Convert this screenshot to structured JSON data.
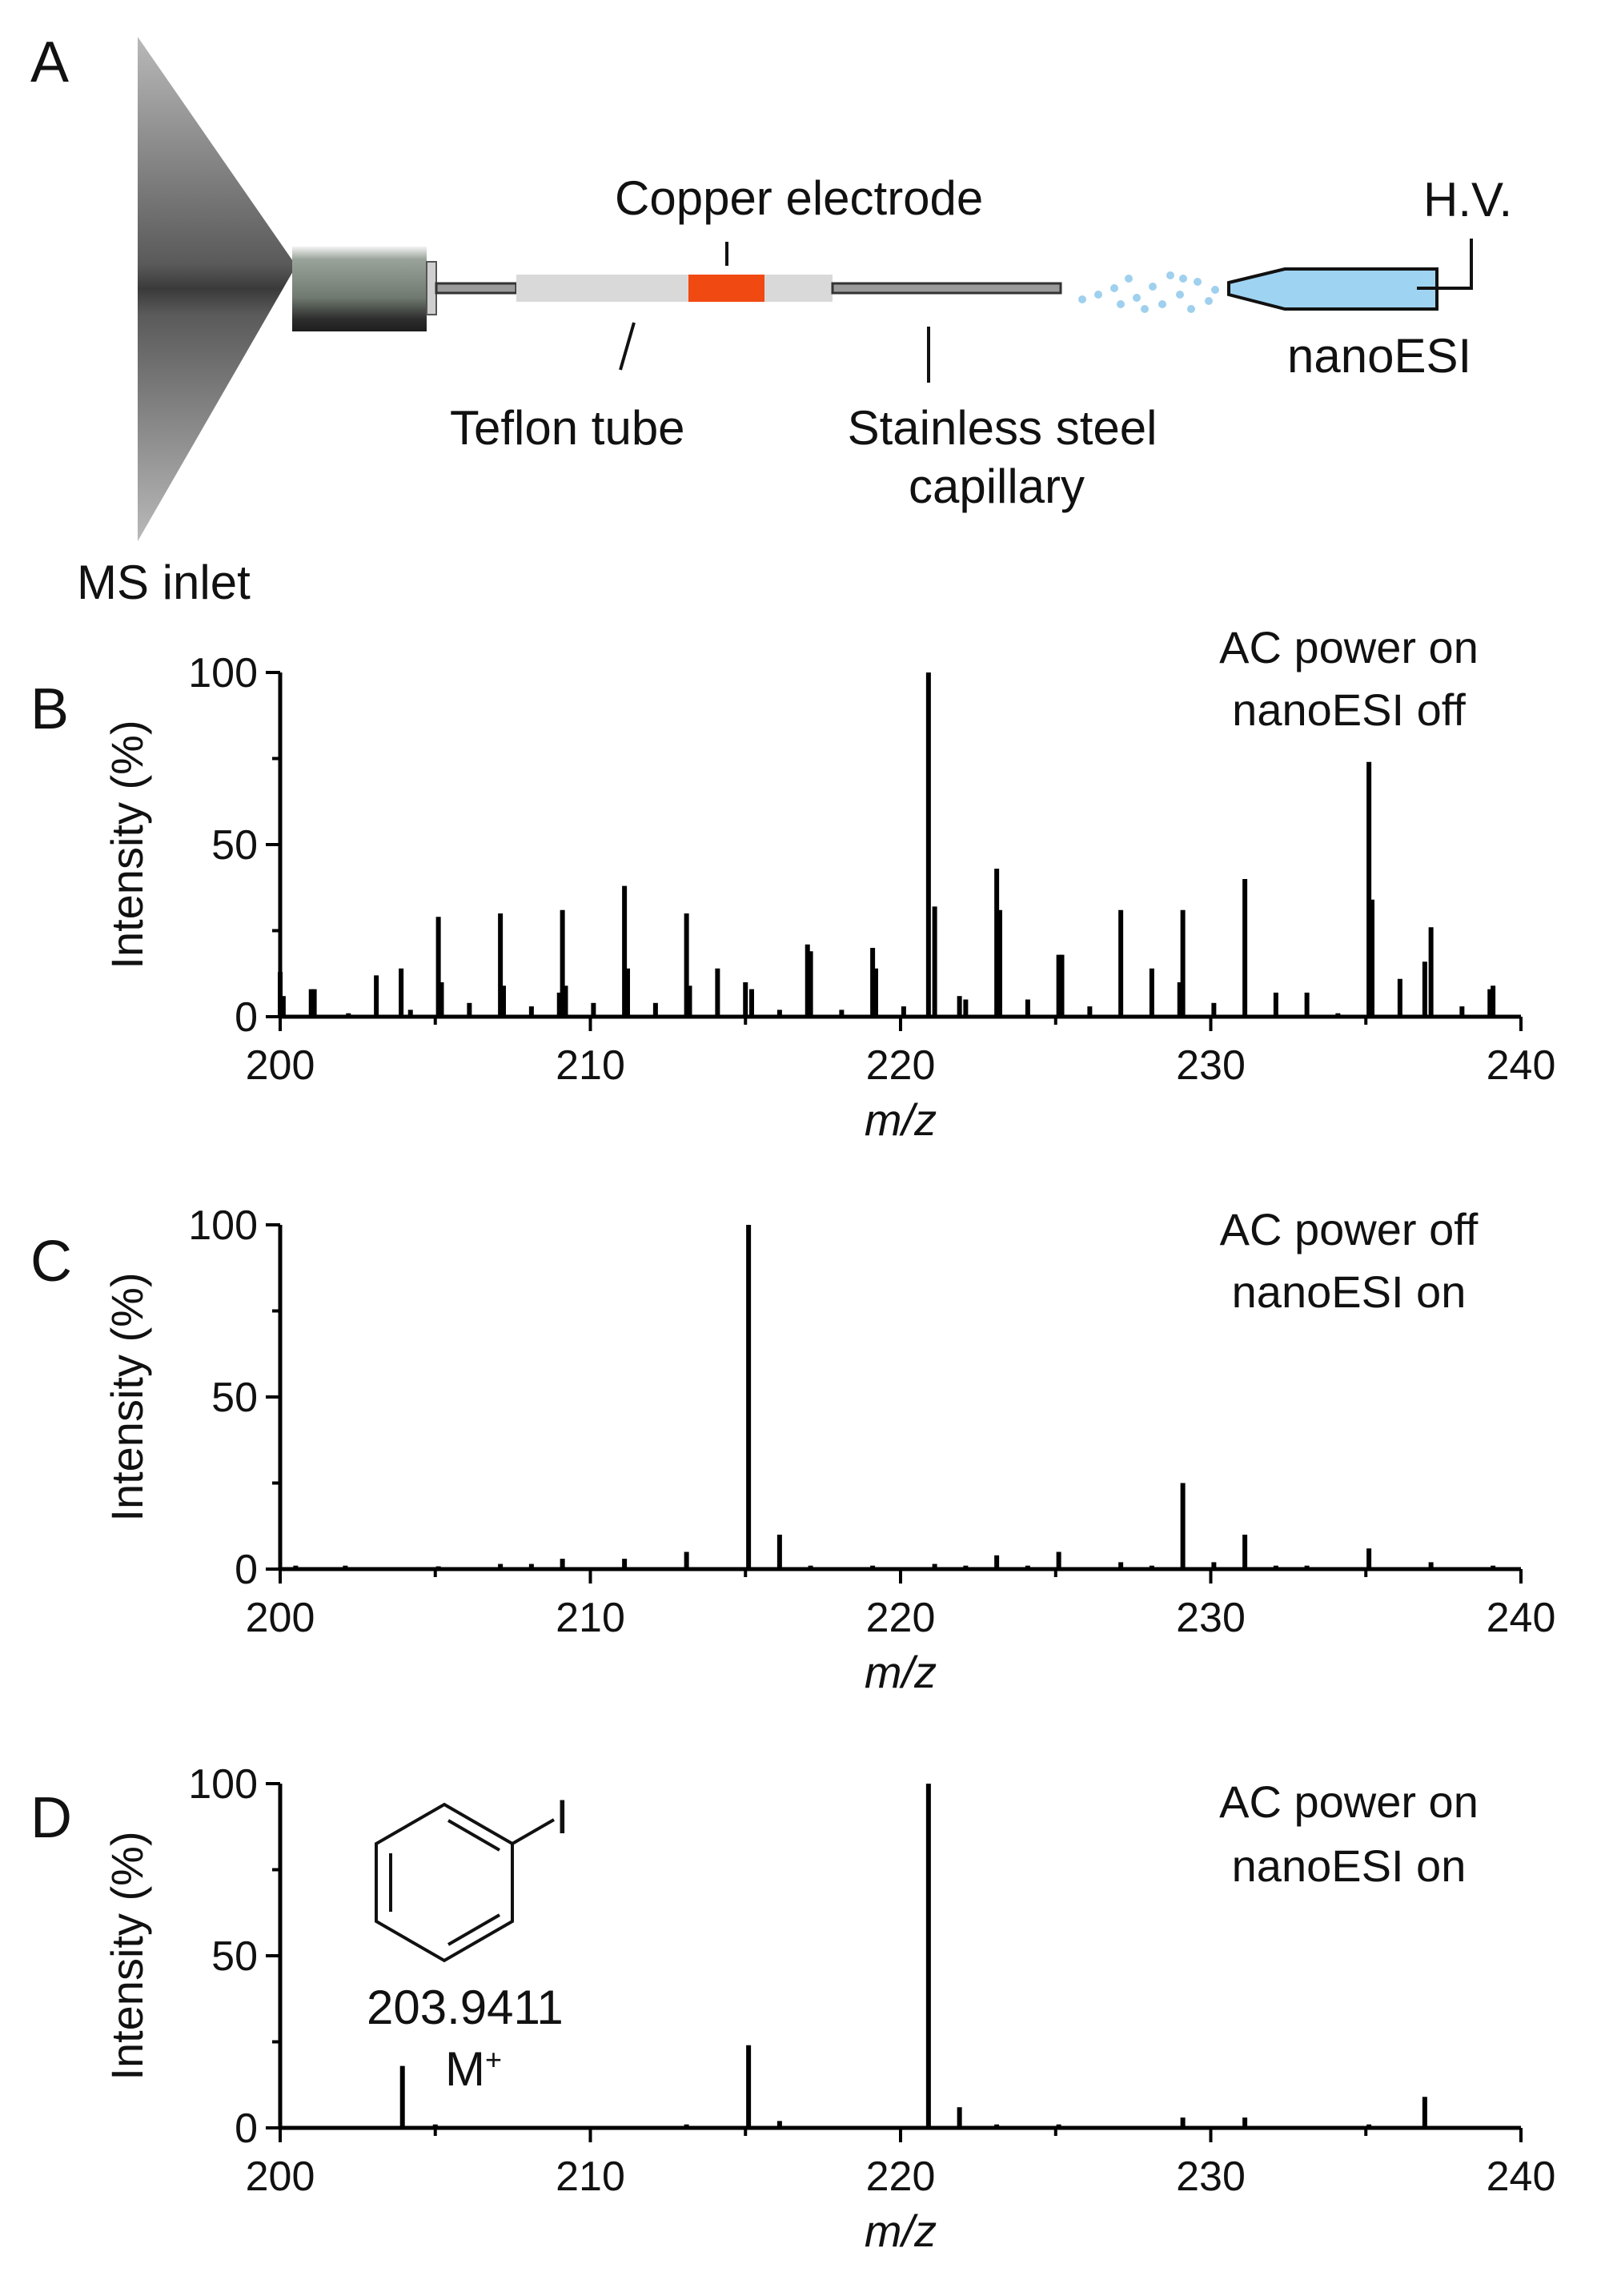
{
  "schematic": {
    "panel_letter": "A",
    "labels": {
      "ms_inlet": "MS inlet",
      "copper_electrode": "Copper electrode",
      "teflon_tube": "Teflon tube",
      "stainless_line1": "Stainless steel",
      "stainless_line2": "capillary",
      "hv": "H.V.",
      "nanoesi": "nanoESI"
    },
    "colors": {
      "cone": "#6b6b6b",
      "connector": "#8a9088",
      "teflon": "#d9d9d9",
      "electrode": "#f04a12",
      "steel": "#555555",
      "droplets": "#9fd0ee",
      "emitter": "#9fd3f2"
    }
  },
  "chart_data": [
    {
      "panel_letter": "B",
      "type": "bar",
      "annotation": [
        "AC power on",
        "nanoESI off"
      ],
      "xlabel": "m/z",
      "ylabel": "Intensity (%)",
      "xlim": [
        200,
        240
      ],
      "ylim": [
        0,
        100
      ],
      "xticks": [
        200,
        210,
        220,
        230,
        240
      ],
      "yticks": [
        0,
        50,
        100
      ],
      "peaks": [
        [
          200.0,
          13
        ],
        [
          200.1,
          6
        ],
        [
          201.0,
          8
        ],
        [
          201.1,
          8
        ],
        [
          202.2,
          1
        ],
        [
          203.1,
          12
        ],
        [
          203.9,
          14
        ],
        [
          204.2,
          2
        ],
        [
          205.1,
          29
        ],
        [
          205.2,
          10
        ],
        [
          206.1,
          4
        ],
        [
          207.1,
          30
        ],
        [
          207.2,
          9
        ],
        [
          208.1,
          3
        ],
        [
          209.0,
          7
        ],
        [
          209.1,
          31
        ],
        [
          209.2,
          9
        ],
        [
          210.1,
          4
        ],
        [
          211.1,
          38
        ],
        [
          211.2,
          14
        ],
        [
          212.1,
          4
        ],
        [
          213.1,
          30
        ],
        [
          213.2,
          9
        ],
        [
          214.1,
          14
        ],
        [
          215.0,
          10
        ],
        [
          215.2,
          8
        ],
        [
          216.1,
          2
        ],
        [
          217.0,
          21
        ],
        [
          217.1,
          19
        ],
        [
          218.1,
          2
        ],
        [
          219.1,
          20
        ],
        [
          219.2,
          14
        ],
        [
          220.1,
          3
        ],
        [
          220.9,
          100
        ],
        [
          221.1,
          32
        ],
        [
          221.9,
          6
        ],
        [
          222.1,
          5
        ],
        [
          223.1,
          43
        ],
        [
          223.2,
          31
        ],
        [
          224.1,
          5
        ],
        [
          225.1,
          18
        ],
        [
          225.2,
          18
        ],
        [
          226.1,
          3
        ],
        [
          227.1,
          31
        ],
        [
          228.1,
          14
        ],
        [
          229.0,
          10
        ],
        [
          229.1,
          31
        ],
        [
          230.1,
          4
        ],
        [
          231.1,
          40
        ],
        [
          232.1,
          7
        ],
        [
          233.1,
          7
        ],
        [
          234.1,
          1
        ],
        [
          235.1,
          74
        ],
        [
          235.2,
          34
        ],
        [
          236.1,
          11
        ],
        [
          236.9,
          16
        ],
        [
          237.1,
          26
        ],
        [
          238.1,
          3
        ],
        [
          239.0,
          8
        ],
        [
          239.1,
          9
        ]
      ]
    },
    {
      "panel_letter": "C",
      "type": "bar",
      "annotation": [
        "AC power off",
        "nanoESI on"
      ],
      "xlabel": "m/z",
      "ylabel": "Intensity (%)",
      "xlim": [
        200,
        240
      ],
      "ylim": [
        0,
        100
      ],
      "xticks": [
        200,
        210,
        220,
        230,
        240
      ],
      "yticks": [
        0,
        50,
        100
      ],
      "peaks": [
        [
          200.5,
          1
        ],
        [
          202.1,
          1
        ],
        [
          205.1,
          0.8
        ],
        [
          207.1,
          1.5
        ],
        [
          208.1,
          1.5
        ],
        [
          209.1,
          3
        ],
        [
          211.1,
          3
        ],
        [
          213.1,
          5
        ],
        [
          215.1,
          100
        ],
        [
          216.1,
          10
        ],
        [
          217.1,
          1
        ],
        [
          219.1,
          1
        ],
        [
          221.1,
          1.5
        ],
        [
          222.1,
          1
        ],
        [
          223.1,
          4
        ],
        [
          224.1,
          1
        ],
        [
          225.1,
          5
        ],
        [
          227.1,
          2
        ],
        [
          228.1,
          1
        ],
        [
          229.1,
          25
        ],
        [
          230.1,
          2
        ],
        [
          231.1,
          10
        ],
        [
          232.1,
          1
        ],
        [
          233.1,
          1
        ],
        [
          235.1,
          6
        ],
        [
          237.1,
          2
        ],
        [
          239.1,
          1
        ]
      ]
    },
    {
      "panel_letter": "D",
      "type": "bar",
      "annotation": [
        "AC power on",
        "nanoESI on"
      ],
      "peak_label": {
        "mz": "203.9411",
        "ion": "M",
        "charge": "+"
      },
      "structure_label": "I",
      "xlabel": "m/z",
      "ylabel": "Intensity (%)",
      "xlim": [
        200,
        240
      ],
      "ylim": [
        0,
        100
      ],
      "xticks": [
        200,
        210,
        220,
        230,
        240
      ],
      "yticks": [
        0,
        50,
        100
      ],
      "peaks": [
        [
          203.9411,
          18
        ],
        [
          205.0,
          1
        ],
        [
          207.1,
          0.5
        ],
        [
          209.1,
          0.5
        ],
        [
          213.1,
          1
        ],
        [
          215.1,
          24
        ],
        [
          216.1,
          2
        ],
        [
          219.1,
          0.5
        ],
        [
          220.9,
          100
        ],
        [
          221.9,
          6
        ],
        [
          223.1,
          1
        ],
        [
          225.1,
          1
        ],
        [
          229.1,
          3
        ],
        [
          231.1,
          3
        ],
        [
          235.1,
          1
        ],
        [
          236.9,
          9
        ]
      ]
    }
  ]
}
